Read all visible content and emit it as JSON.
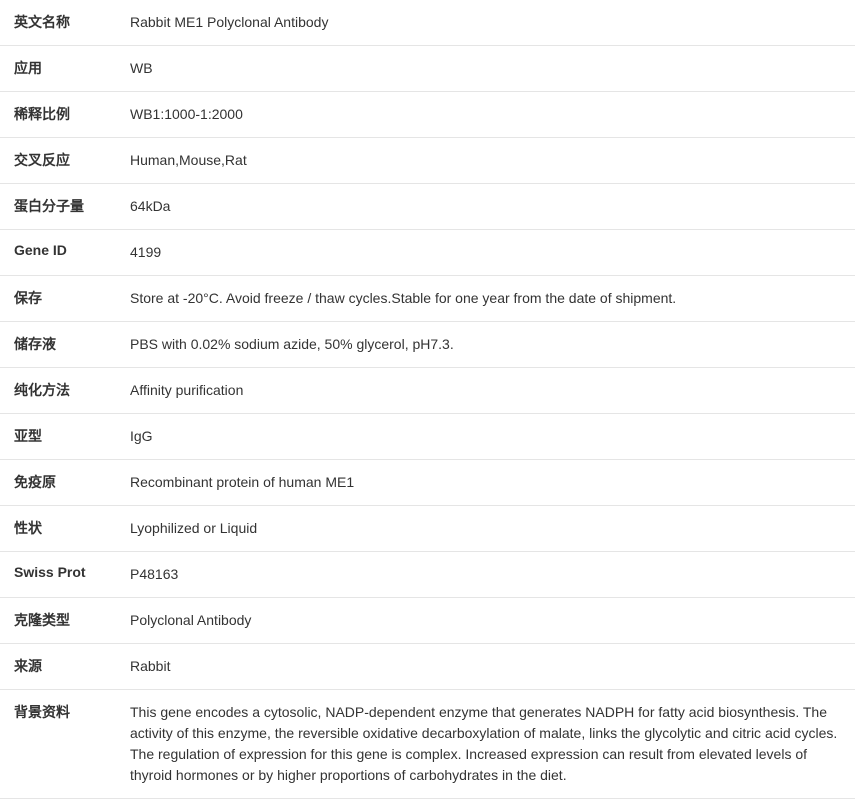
{
  "rows": [
    {
      "label": "英文名称",
      "value": "Rabbit ME1 Polyclonal Antibody"
    },
    {
      "label": "应用",
      "value": "WB"
    },
    {
      "label": "稀释比例",
      "value": "WB1:1000-1:2000"
    },
    {
      "label": "交叉反应",
      "value": "Human,Mouse,Rat"
    },
    {
      "label": "蛋白分子量",
      "value": "64kDa"
    },
    {
      "label": "Gene ID",
      "value": "4199"
    },
    {
      "label": "保存",
      "value": "Store at -20°C. Avoid freeze / thaw cycles.Stable for one year from the date of shipment."
    },
    {
      "label": "储存液",
      "value": "PBS with 0.02% sodium azide, 50% glycerol, pH7.3."
    },
    {
      "label": "纯化方法",
      "value": "Affinity purification"
    },
    {
      "label": "亚型",
      "value": "IgG"
    },
    {
      "label": "免疫原",
      "value": "Recombinant protein of human ME1"
    },
    {
      "label": "性状",
      "value": "Lyophilized or Liquid"
    },
    {
      "label": "Swiss Prot",
      "value": "P48163"
    },
    {
      "label": "克隆类型",
      "value": "Polyclonal Antibody"
    },
    {
      "label": "来源",
      "value": "Rabbit"
    },
    {
      "label": "背景资料",
      "value": "This gene encodes a cytosolic, NADP-dependent enzyme that generates NADPH for fatty acid biosynthesis. The activity of this enzyme, the reversible oxidative decarboxylation of malate, links the glycolytic and citric acid cycles. The regulation of expression for this gene is complex. Increased expression can result from elevated levels of thyroid hormones or by higher proportions of carbohydrates in the diet."
    }
  ]
}
